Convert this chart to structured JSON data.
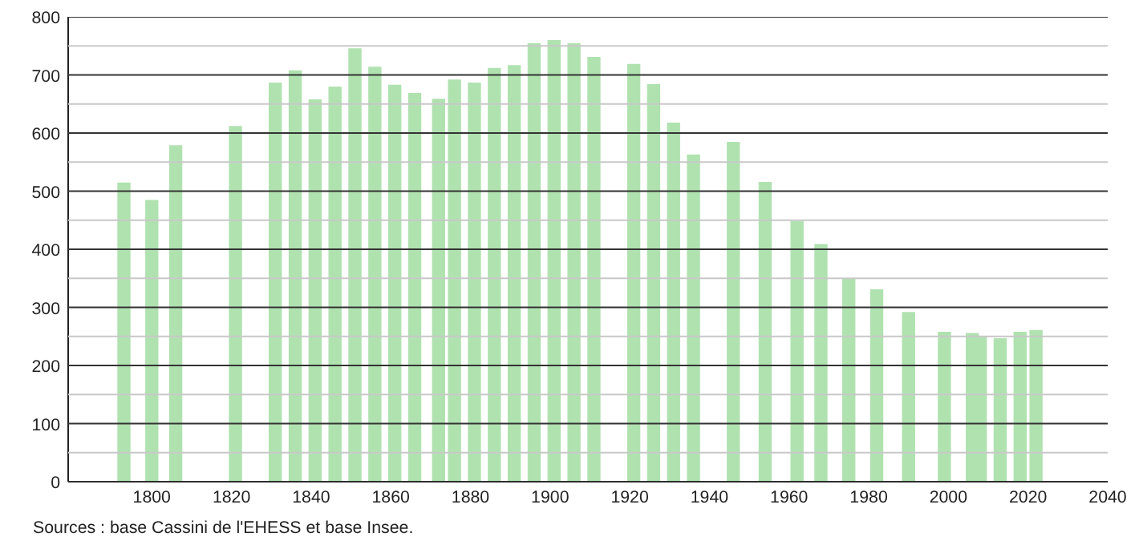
{
  "chart_data": {
    "type": "bar",
    "x": [
      1793,
      1800,
      1806,
      1821,
      1831,
      1836,
      1841,
      1846,
      1851,
      1856,
      1861,
      1866,
      1872,
      1876,
      1881,
      1886,
      1891,
      1896,
      1901,
      1906,
      1911,
      1921,
      1926,
      1931,
      1936,
      1946,
      1954,
      1962,
      1968,
      1975,
      1982,
      1990,
      1999,
      2006,
      2008,
      2013,
      2018,
      2022
    ],
    "values": [
      515,
      485,
      579,
      612,
      687,
      708,
      658,
      680,
      746,
      714,
      683,
      669,
      659,
      692,
      687,
      712,
      717,
      755,
      760,
      755,
      731,
      719,
      684,
      618,
      563,
      585,
      516,
      449,
      409,
      349,
      331,
      292,
      258,
      256,
      250,
      247,
      258,
      261
    ],
    "color": "#b0e2b0",
    "xlim": [
      1779,
      2040
    ],
    "xticks": [
      1800,
      1820,
      1840,
      1860,
      1880,
      1900,
      1920,
      1940,
      1960,
      1980,
      2000,
      2020,
      2040
    ],
    "ylim": [
      0,
      800
    ],
    "yticks": [
      0,
      {
        "value": 50,
        "label": null
      },
      100,
      {
        "value": 150,
        "label": null
      },
      200,
      {
        "value": 250,
        "label": null
      },
      300,
      {
        "value": 350,
        "label": null
      },
      400,
      {
        "value": 450,
        "label": null
      },
      500,
      {
        "value": 550,
        "label": null
      },
      600,
      {
        "value": 650,
        "label": null
      },
      700,
      {
        "value": 750,
        "label": null
      },
      800
    ],
    "grid": "y",
    "annotations": [
      "Sources : base Cassini de l'EHESS et base Insee."
    ]
  }
}
